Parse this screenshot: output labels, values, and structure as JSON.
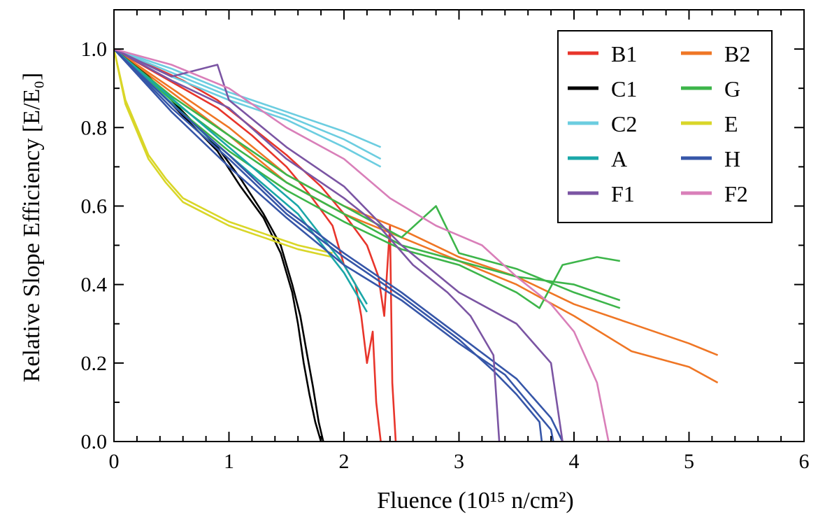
{
  "chart_data": {
    "type": "line",
    "xlabel": "Fluence (10¹⁵ n/cm²)",
    "ylabel": "Relative Slope Efficiency [E/E₀]",
    "xlim": [
      0,
      6
    ],
    "ylim": [
      0,
      1.1
    ],
    "x_ticks": [
      "0",
      "1",
      "2",
      "3",
      "4",
      "5",
      "6"
    ],
    "y_ticks": [
      "0.0",
      "0.2",
      "0.4",
      "0.6",
      "0.8",
      "1.0"
    ],
    "grid": false,
    "legend_position": "top-right",
    "series": [
      {
        "name": "B1",
        "color": "#e8352b",
        "lines": [
          [
            [
              0,
              1.0
            ],
            [
              0.3,
              0.95
            ],
            [
              0.6,
              0.9
            ],
            [
              0.9,
              0.85
            ],
            [
              1.2,
              0.78
            ],
            [
              1.5,
              0.7
            ],
            [
              1.7,
              0.63
            ],
            [
              1.9,
              0.55
            ],
            [
              2.0,
              0.45
            ],
            [
              2.1,
              0.4
            ],
            [
              2.15,
              0.32
            ],
            [
              2.2,
              0.2
            ],
            [
              2.25,
              0.28
            ],
            [
              2.28,
              0.1
            ],
            [
              2.3,
              0.05
            ],
            [
              2.32,
              0.0
            ]
          ],
          [
            [
              0,
              1.0
            ],
            [
              0.3,
              0.96
            ],
            [
              0.6,
              0.92
            ],
            [
              0.9,
              0.87
            ],
            [
              1.2,
              0.8
            ],
            [
              1.5,
              0.73
            ],
            [
              1.8,
              0.65
            ],
            [
              2.0,
              0.58
            ],
            [
              2.2,
              0.5
            ],
            [
              2.3,
              0.42
            ],
            [
              2.35,
              0.32
            ],
            [
              2.4,
              0.55
            ],
            [
              2.42,
              0.15
            ],
            [
              2.45,
              0.0
            ]
          ]
        ]
      },
      {
        "name": "B2",
        "color": "#ef7625",
        "lines": [
          [
            [
              0,
              1.0
            ],
            [
              0.5,
              0.9
            ],
            [
              1.0,
              0.8
            ],
            [
              1.5,
              0.68
            ],
            [
              2.0,
              0.6
            ],
            [
              2.5,
              0.54
            ],
            [
              3.0,
              0.47
            ],
            [
              3.5,
              0.42
            ],
            [
              4.0,
              0.35
            ],
            [
              4.5,
              0.3
            ],
            [
              5.0,
              0.25
            ],
            [
              5.25,
              0.22
            ]
          ],
          [
            [
              0,
              1.0
            ],
            [
              0.5,
              0.89
            ],
            [
              1.0,
              0.78
            ],
            [
              1.5,
              0.66
            ],
            [
              2.0,
              0.58
            ],
            [
              2.5,
              0.52
            ],
            [
              3.0,
              0.46
            ],
            [
              3.5,
              0.4
            ],
            [
              4.0,
              0.32
            ],
            [
              4.5,
              0.23
            ],
            [
              5.0,
              0.19
            ],
            [
              5.25,
              0.15
            ]
          ]
        ]
      },
      {
        "name": "C1",
        "color": "#000000",
        "lines": [
          [
            [
              0,
              1.0
            ],
            [
              0.3,
              0.92
            ],
            [
              0.6,
              0.83
            ],
            [
              0.9,
              0.74
            ],
            [
              1.1,
              0.65
            ],
            [
              1.3,
              0.57
            ],
            [
              1.45,
              0.48
            ],
            [
              1.55,
              0.38
            ],
            [
              1.6,
              0.3
            ],
            [
              1.65,
              0.2
            ],
            [
              1.7,
              0.12
            ],
            [
              1.75,
              0.05
            ],
            [
              1.8,
              0.0
            ]
          ],
          [
            [
              0,
              1.0
            ],
            [
              0.3,
              0.93
            ],
            [
              0.6,
              0.84
            ],
            [
              0.9,
              0.75
            ],
            [
              1.1,
              0.67
            ],
            [
              1.3,
              0.58
            ],
            [
              1.45,
              0.5
            ],
            [
              1.55,
              0.4
            ],
            [
              1.62,
              0.32
            ],
            [
              1.68,
              0.22
            ],
            [
              1.73,
              0.14
            ],
            [
              1.78,
              0.05
            ],
            [
              1.82,
              0.0
            ]
          ]
        ]
      },
      {
        "name": "G",
        "color": "#3db54a",
        "lines": [
          [
            [
              0,
              1.0
            ],
            [
              0.5,
              0.88
            ],
            [
              1.0,
              0.78
            ],
            [
              1.5,
              0.68
            ],
            [
              2.0,
              0.6
            ],
            [
              2.5,
              0.52
            ],
            [
              2.8,
              0.6
            ],
            [
              3.0,
              0.48
            ],
            [
              3.5,
              0.44
            ],
            [
              4.0,
              0.38
            ],
            [
              4.4,
              0.34
            ]
          ],
          [
            [
              0,
              1.0
            ],
            [
              0.5,
              0.87
            ],
            [
              1.0,
              0.76
            ],
            [
              1.5,
              0.66
            ],
            [
              2.0,
              0.58
            ],
            [
              2.5,
              0.5
            ],
            [
              3.0,
              0.46
            ],
            [
              3.5,
              0.42
            ],
            [
              4.0,
              0.4
            ],
            [
              4.4,
              0.36
            ]
          ],
          [
            [
              0,
              1.0
            ],
            [
              0.5,
              0.86
            ],
            [
              1.0,
              0.74
            ],
            [
              1.5,
              0.64
            ],
            [
              2.0,
              0.56
            ],
            [
              2.5,
              0.49
            ],
            [
              3.0,
              0.45
            ],
            [
              3.5,
              0.38
            ],
            [
              3.7,
              0.34
            ],
            [
              3.9,
              0.45
            ],
            [
              4.2,
              0.47
            ],
            [
              4.4,
              0.46
            ]
          ]
        ]
      },
      {
        "name": "C2",
        "color": "#6ccde0",
        "lines": [
          [
            [
              0,
              1.0
            ],
            [
              0.5,
              0.94
            ],
            [
              1.0,
              0.88
            ],
            [
              1.5,
              0.83
            ],
            [
              2.0,
              0.77
            ],
            [
              2.32,
              0.72
            ]
          ],
          [
            [
              0,
              1.0
            ],
            [
              0.5,
              0.95
            ],
            [
              1.0,
              0.89
            ],
            [
              1.5,
              0.84
            ],
            [
              2.0,
              0.79
            ],
            [
              2.32,
              0.75
            ]
          ],
          [
            [
              0,
              1.0
            ],
            [
              0.5,
              0.93
            ],
            [
              1.0,
              0.87
            ],
            [
              1.5,
              0.82
            ],
            [
              2.0,
              0.75
            ],
            [
              2.32,
              0.7
            ]
          ]
        ]
      },
      {
        "name": "E",
        "color": "#d9d628",
        "lines": [
          [
            [
              0,
              1.0
            ],
            [
              0.1,
              0.86
            ],
            [
              0.2,
              0.79
            ],
            [
              0.3,
              0.72
            ],
            [
              0.45,
              0.66
            ],
            [
              0.6,
              0.61
            ],
            [
              0.8,
              0.58
            ],
            [
              1.0,
              0.55
            ],
            [
              1.3,
              0.52
            ],
            [
              1.6,
              0.49
            ],
            [
              1.9,
              0.47
            ]
          ],
          [
            [
              0,
              1.0
            ],
            [
              0.1,
              0.87
            ],
            [
              0.2,
              0.8
            ],
            [
              0.3,
              0.73
            ],
            [
              0.45,
              0.67
            ],
            [
              0.6,
              0.62
            ],
            [
              0.8,
              0.59
            ],
            [
              1.0,
              0.56
            ],
            [
              1.3,
              0.53
            ],
            [
              1.6,
              0.5
            ],
            [
              1.9,
              0.48
            ]
          ]
        ]
      },
      {
        "name": "A",
        "color": "#1aa7a8",
        "lines": [
          [
            [
              0,
              1.0
            ],
            [
              0.4,
              0.9
            ],
            [
              0.8,
              0.8
            ],
            [
              1.2,
              0.7
            ],
            [
              1.6,
              0.6
            ],
            [
              2.0,
              0.45
            ],
            [
              2.2,
              0.35
            ]
          ],
          [
            [
              0,
              1.0
            ],
            [
              0.4,
              0.89
            ],
            [
              0.8,
              0.78
            ],
            [
              1.2,
              0.68
            ],
            [
              1.6,
              0.58
            ],
            [
              2.0,
              0.43
            ],
            [
              2.2,
              0.33
            ]
          ]
        ]
      },
      {
        "name": "H",
        "color": "#3656a8",
        "lines": [
          [
            [
              0,
              1.0
            ],
            [
              0.5,
              0.85
            ],
            [
              1.0,
              0.72
            ],
            [
              1.5,
              0.58
            ],
            [
              2.0,
              0.47
            ],
            [
              2.5,
              0.37
            ],
            [
              3.0,
              0.26
            ],
            [
              3.3,
              0.18
            ],
            [
              3.5,
              0.12
            ],
            [
              3.7,
              0.05
            ],
            [
              3.72,
              0.0
            ]
          ],
          [
            [
              0,
              1.0
            ],
            [
              0.5,
              0.84
            ],
            [
              1.0,
              0.7
            ],
            [
              1.5,
              0.57
            ],
            [
              2.0,
              0.45
            ],
            [
              2.5,
              0.36
            ],
            [
              3.0,
              0.25
            ],
            [
              3.4,
              0.17
            ],
            [
              3.6,
              0.1
            ],
            [
              3.8,
              0.03
            ],
            [
              3.82,
              0.0
            ]
          ],
          [
            [
              0,
              1.0
            ],
            [
              0.5,
              0.86
            ],
            [
              1.0,
              0.73
            ],
            [
              1.5,
              0.59
            ],
            [
              2.0,
              0.48
            ],
            [
              2.5,
              0.38
            ],
            [
              3.0,
              0.27
            ],
            [
              3.5,
              0.16
            ],
            [
              3.8,
              0.06
            ],
            [
              3.9,
              0.0
            ]
          ]
        ]
      },
      {
        "name": "F1",
        "color": "#7b55a3",
        "lines": [
          [
            [
              0,
              1.0
            ],
            [
              0.5,
              0.92
            ],
            [
              1.0,
              0.85
            ],
            [
              1.5,
              0.72
            ],
            [
              2.0,
              0.62
            ],
            [
              2.3,
              0.55
            ],
            [
              2.6,
              0.45
            ],
            [
              2.9,
              0.38
            ],
            [
              3.1,
              0.32
            ],
            [
              3.3,
              0.22
            ],
            [
              3.35,
              0.0
            ]
          ],
          [
            [
              0,
              1.0
            ],
            [
              0.5,
              0.93
            ],
            [
              0.9,
              0.96
            ],
            [
              1.0,
              0.87
            ],
            [
              1.5,
              0.75
            ],
            [
              2.0,
              0.65
            ],
            [
              2.5,
              0.5
            ],
            [
              3.0,
              0.38
            ],
            [
              3.5,
              0.3
            ],
            [
              3.8,
              0.2
            ],
            [
              3.9,
              0.0
            ]
          ]
        ]
      },
      {
        "name": "F2",
        "color": "#d97fb9",
        "lines": [
          [
            [
              0,
              1.0
            ],
            [
              0.5,
              0.96
            ],
            [
              1.0,
              0.9
            ],
            [
              1.5,
              0.8
            ],
            [
              2.0,
              0.72
            ],
            [
              2.4,
              0.62
            ],
            [
              2.8,
              0.55
            ],
            [
              3.2,
              0.5
            ],
            [
              3.5,
              0.42
            ],
            [
              3.8,
              0.35
            ],
            [
              4.0,
              0.28
            ],
            [
              4.2,
              0.15
            ],
            [
              4.3,
              0.0
            ]
          ]
        ]
      }
    ]
  }
}
